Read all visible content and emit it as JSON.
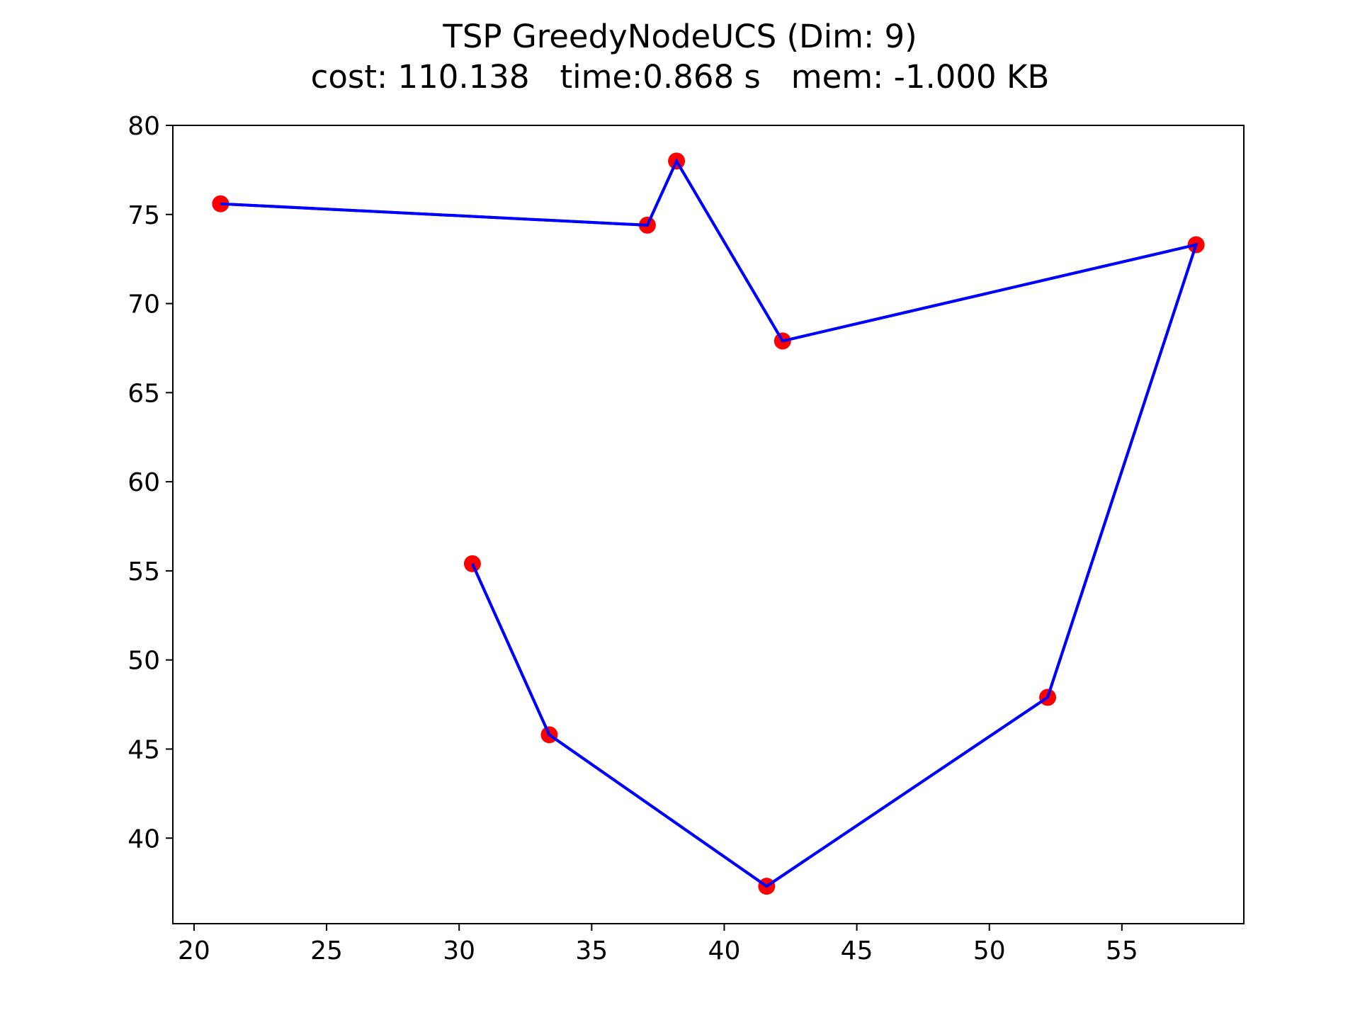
{
  "chart_data": {
    "type": "line",
    "title": "TSP GreedyNodeUCS (Dim: 9)",
    "subtitle": "cost: 110.138   time:0.868 s   mem: -1.000 KB",
    "xlabel": "",
    "ylabel": "",
    "xlim": [
      19.2,
      59.6
    ],
    "ylim": [
      35.2,
      80
    ],
    "xticks": [
      20,
      25,
      30,
      35,
      40,
      45,
      50,
      55
    ],
    "yticks": [
      40,
      45,
      50,
      55,
      60,
      65,
      70,
      75,
      80
    ],
    "grid": false,
    "legend": false,
    "path_color": "#0000ff",
    "node_color": "#ff0000",
    "tour": [
      {
        "x": 21.0,
        "y": 75.6
      },
      {
        "x": 37.1,
        "y": 74.4
      },
      {
        "x": 38.2,
        "y": 78.0
      },
      {
        "x": 42.2,
        "y": 67.9
      },
      {
        "x": 57.8,
        "y": 73.3
      },
      {
        "x": 52.2,
        "y": 47.9
      },
      {
        "x": 41.6,
        "y": 37.3
      },
      {
        "x": 33.4,
        "y": 45.8
      },
      {
        "x": 30.5,
        "y": 55.4
      }
    ]
  }
}
